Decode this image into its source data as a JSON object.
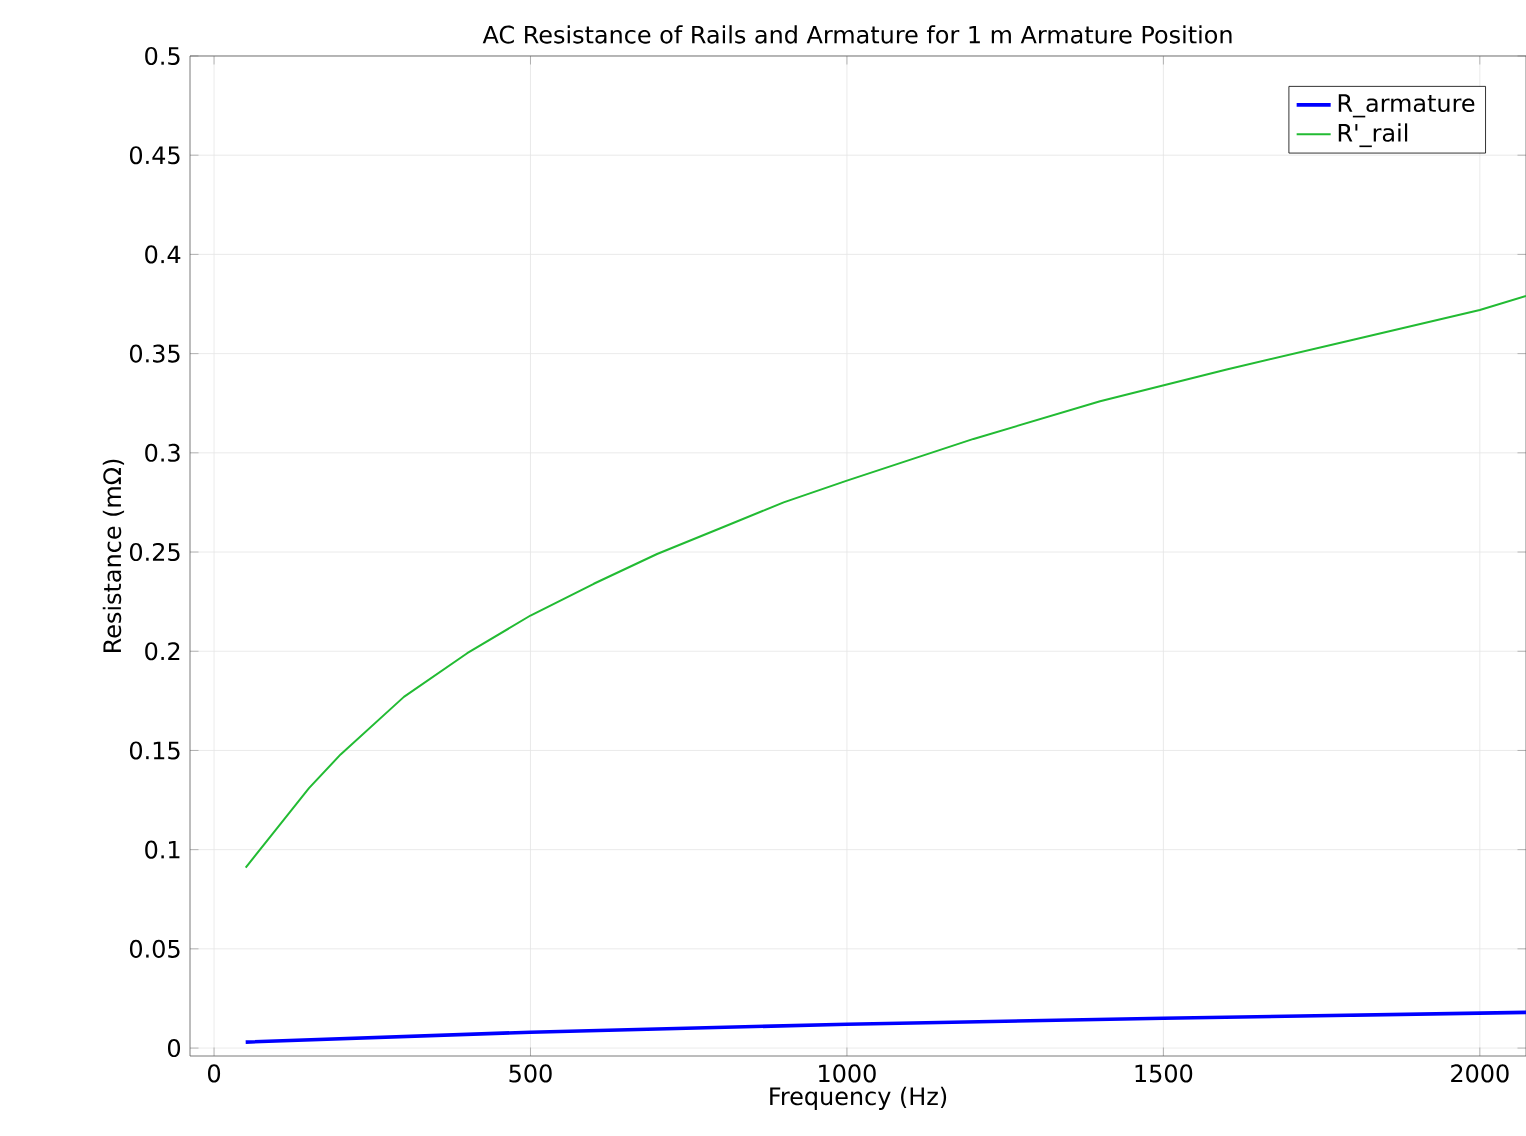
{
  "chart_data": {
    "type": "line",
    "title": "AC Resistance of Rails and Armature for 1 m Armature Position",
    "xlabel": "Frequency (Hz)",
    "ylabel": "Resistance (mΩ)",
    "xlim": [
      -38,
      2073
    ],
    "ylim": [
      -0.004,
      0.5
    ],
    "xticks": [
      0,
      500,
      1000,
      1500,
      2000
    ],
    "yticks": [
      0,
      0.05,
      0.1,
      0.15,
      0.2,
      0.25,
      0.3,
      0.35,
      0.4,
      0.45,
      0.5
    ],
    "grid": true,
    "legend": "top right",
    "marker": "none",
    "line_style": "solid",
    "series": [
      {
        "name": "R_armature",
        "color": "#0000ff",
        "x": [
          50,
          500,
          1000,
          1500,
          2073
        ],
        "values": [
          0.003,
          0.008,
          0.012,
          0.015,
          0.018
        ]
      },
      {
        "name": "R'_rail",
        "color": "#22bb33",
        "x": [
          50,
          100,
          150,
          200,
          300,
          400,
          500,
          600,
          700,
          800,
          900,
          1000,
          1200,
          1400,
          1500,
          1600,
          1800,
          2000,
          2073
        ],
        "values": [
          0.091,
          0.111,
          0.131,
          0.148,
          0.177,
          0.199,
          0.218,
          0.234,
          0.249,
          0.262,
          0.275,
          0.286,
          0.307,
          0.326,
          0.334,
          0.342,
          0.357,
          0.372,
          0.379
        ]
      }
    ]
  }
}
